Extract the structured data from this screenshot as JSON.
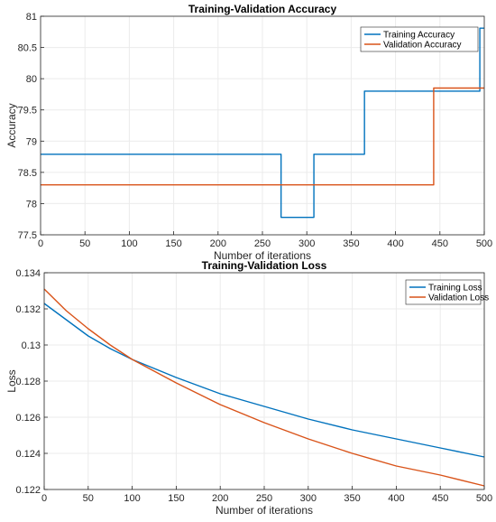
{
  "colors": {
    "training": "#0072BD",
    "validation": "#D95319",
    "grid": "#ebebeb",
    "axis": "#262626"
  },
  "chart_data": [
    {
      "type": "line",
      "title": "Training-Validation Accuracy",
      "xlabel": "Number of iterations",
      "ylabel": "Accuracy",
      "xlim": [
        0,
        500
      ],
      "ylim": [
        77.5,
        81
      ],
      "xticks": [
        0,
        50,
        100,
        150,
        200,
        250,
        300,
        350,
        400,
        450,
        500
      ],
      "yticks": [
        77.5,
        78,
        78.5,
        79,
        79.5,
        80,
        80.5,
        81
      ],
      "ytick_labels": [
        "77.5",
        "78",
        "78.5",
        "79",
        "79.5",
        "80",
        "80.5",
        "81"
      ],
      "grid": true,
      "legend": "top-right",
      "series": [
        {
          "name": "Training Accuracy",
          "color_key": "training",
          "x": [
            0,
            271,
            271,
            308,
            308,
            365,
            365,
            495,
            495,
            500
          ],
          "y": [
            78.79,
            78.79,
            77.78,
            77.78,
            78.79,
            78.79,
            79.8,
            79.8,
            80.81,
            80.81
          ]
        },
        {
          "name": "Validation Accuracy",
          "color_key": "validation",
          "x": [
            0,
            443,
            443,
            500
          ],
          "y": [
            78.3,
            78.3,
            79.85,
            79.85
          ]
        }
      ]
    },
    {
      "type": "line",
      "title": "Training-Validation Loss",
      "xlabel": "Number of iterations",
      "ylabel": "Loss",
      "xlim": [
        0,
        500
      ],
      "ylim": [
        0.122,
        0.134
      ],
      "xticks": [
        0,
        50,
        100,
        150,
        200,
        250,
        300,
        350,
        400,
        450,
        500
      ],
      "yticks": [
        0.122,
        0.124,
        0.126,
        0.128,
        0.13,
        0.132,
        0.134
      ],
      "ytick_labels": [
        "0.122",
        "0.124",
        "0.126",
        "0.128",
        "0.13",
        "0.132",
        "0.134"
      ],
      "grid": true,
      "legend": "top-right",
      "series": [
        {
          "name": "Training Loss",
          "color_key": "training",
          "x": [
            0,
            25,
            50,
            75,
            100,
            150,
            200,
            250,
            300,
            350,
            400,
            450,
            500
          ],
          "y": [
            0.1323,
            0.1314,
            0.1305,
            0.1298,
            0.1292,
            0.1282,
            0.1273,
            0.1266,
            0.1259,
            0.1253,
            0.1248,
            0.1243,
            0.1238
          ]
        },
        {
          "name": "Validation Loss",
          "color_key": "validation",
          "x": [
            0,
            25,
            50,
            75,
            100,
            150,
            200,
            250,
            300,
            350,
            400,
            450,
            500
          ],
          "y": [
            0.1331,
            0.1319,
            0.1309,
            0.13,
            0.1292,
            0.1279,
            0.1267,
            0.1257,
            0.1248,
            0.124,
            0.1233,
            0.1228,
            0.1222
          ]
        }
      ]
    }
  ]
}
